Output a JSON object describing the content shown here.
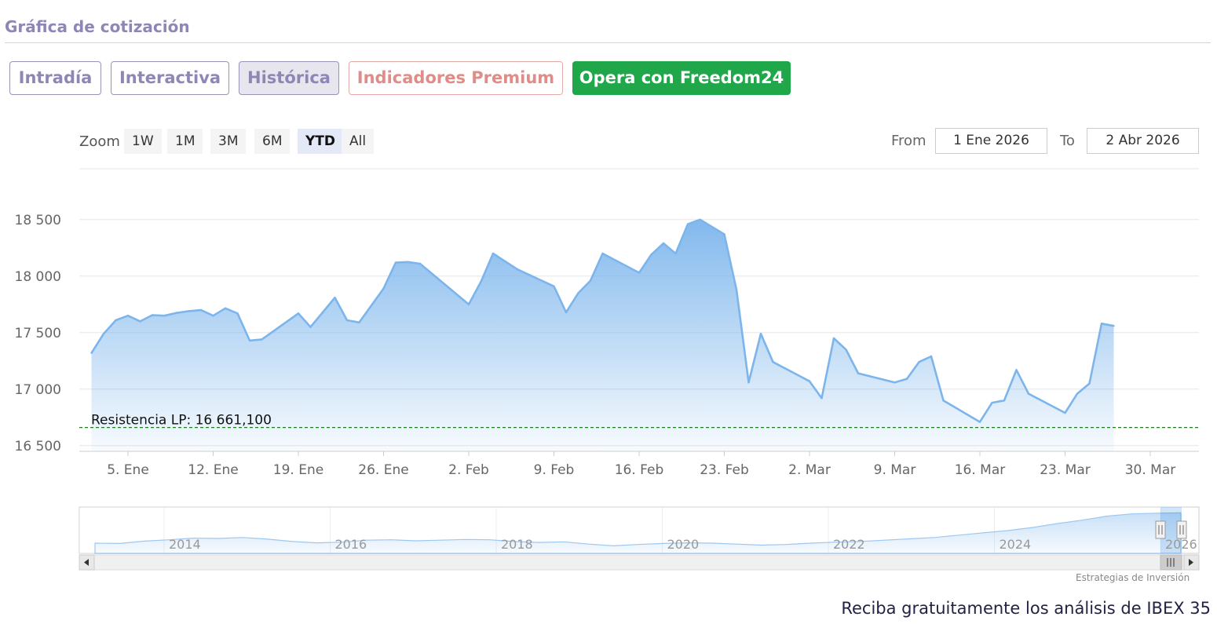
{
  "section_title": "Gráfica de cotización",
  "tabs": [
    {
      "label": "Intradía"
    },
    {
      "label": "Interactiva"
    },
    {
      "label": "Histórica"
    },
    {
      "label": "Indicadores Premium"
    },
    {
      "label": "Opera con Freedom24"
    }
  ],
  "zoom": {
    "label": "Zoom",
    "buttons": [
      "1W",
      "1M",
      "3M",
      "6M",
      "YTD",
      "All"
    ],
    "active": "YTD"
  },
  "range": {
    "from_label": "From",
    "from_value": "1 Ene 2026",
    "to_label": "To",
    "to_value": "2 Abr 2026"
  },
  "colors": {
    "line": "#7cb5ec",
    "resistance": "#1a7f1a",
    "freedom_button": "#1fa74a",
    "premium_text": "#e08c88",
    "tab_text": "#8f86b5"
  },
  "chart_data": {
    "type": "area",
    "title": "",
    "xlabel": "",
    "ylabel": "",
    "ylim": [
      16450,
      18950
    ],
    "yticks": [
      16500,
      17000,
      17500,
      18000,
      18500
    ],
    "ytick_labels": [
      "16 500",
      "17 000",
      "17 500",
      "18 000",
      "18 500"
    ],
    "xlim": [
      "2026-01-01",
      "2026-04-03"
    ],
    "xticks": [
      "2026-01-05",
      "2026-01-12",
      "2026-01-19",
      "2026-01-26",
      "2026-02-02",
      "2026-02-09",
      "2026-02-16",
      "2026-02-23",
      "2026-03-02",
      "2026-03-09",
      "2026-03-16",
      "2026-03-23",
      "2026-03-30"
    ],
    "xtick_labels": [
      "5. Ene",
      "12. Ene",
      "19. Ene",
      "26. Ene",
      "2. Feb",
      "9. Feb",
      "16. Feb",
      "23. Feb",
      "2. Mar",
      "9. Mar",
      "16. Mar",
      "23. Mar",
      "30. Mar"
    ],
    "grid": true,
    "series": [
      {
        "points": [
          [
            "2026-01-02",
            17320
          ],
          [
            "2026-01-03",
            17490
          ],
          [
            "2026-01-04",
            17610
          ],
          [
            "2026-01-05",
            17650
          ],
          [
            "2026-01-06",
            17600
          ],
          [
            "2026-01-07",
            17655
          ],
          [
            "2026-01-08",
            17650
          ],
          [
            "2026-01-09",
            17675
          ],
          [
            "2026-01-10",
            17690
          ],
          [
            "2026-01-11",
            17700
          ],
          [
            "2026-01-12",
            17650
          ],
          [
            "2026-01-13",
            17715
          ],
          [
            "2026-01-14",
            17670
          ],
          [
            "2026-01-15",
            17430
          ],
          [
            "2026-01-16",
            17440
          ],
          [
            "2026-01-19",
            17670
          ],
          [
            "2026-01-20",
            17550
          ],
          [
            "2026-01-21",
            17680
          ],
          [
            "2026-01-22",
            17810
          ],
          [
            "2026-01-23",
            17610
          ],
          [
            "2026-01-24",
            17590
          ],
          [
            "2026-01-26",
            17890
          ],
          [
            "2026-01-27",
            18120
          ],
          [
            "2026-01-28",
            18125
          ],
          [
            "2026-01-29",
            18110
          ],
          [
            "2026-02-02",
            17750
          ],
          [
            "2026-02-03",
            17950
          ],
          [
            "2026-02-04",
            18200
          ],
          [
            "2026-02-05",
            18130
          ],
          [
            "2026-02-06",
            18060
          ],
          [
            "2026-02-09",
            17910
          ],
          [
            "2026-02-10",
            17680
          ],
          [
            "2026-02-11",
            17850
          ],
          [
            "2026-02-12",
            17960
          ],
          [
            "2026-02-13",
            18200
          ],
          [
            "2026-02-16",
            18030
          ],
          [
            "2026-02-17",
            18190
          ],
          [
            "2026-02-18",
            18290
          ],
          [
            "2026-02-19",
            18200
          ],
          [
            "2026-02-20",
            18460
          ],
          [
            "2026-02-21",
            18500
          ],
          [
            "2026-02-23",
            18370
          ],
          [
            "2026-02-24",
            17880
          ],
          [
            "2026-02-25",
            17060
          ],
          [
            "2026-02-26",
            17490
          ],
          [
            "2026-02-27",
            17240
          ],
          [
            "2026-03-02",
            17070
          ],
          [
            "2026-03-03",
            16920
          ],
          [
            "2026-03-04",
            17450
          ],
          [
            "2026-03-05",
            17350
          ],
          [
            "2026-03-06",
            17140
          ],
          [
            "2026-03-09",
            17060
          ],
          [
            "2026-03-10",
            17090
          ],
          [
            "2026-03-11",
            17240
          ],
          [
            "2026-03-12",
            17290
          ],
          [
            "2026-03-13",
            16900
          ],
          [
            "2026-03-16",
            16710
          ],
          [
            "2026-03-17",
            16880
          ],
          [
            "2026-03-18",
            16900
          ],
          [
            "2026-03-19",
            17170
          ],
          [
            "2026-03-20",
            16960
          ],
          [
            "2026-03-23",
            16790
          ],
          [
            "2026-03-24",
            16960
          ],
          [
            "2026-03-25",
            17050
          ],
          [
            "2026-03-26",
            17580
          ],
          [
            "2026-03-27",
            17560
          ]
        ]
      }
    ],
    "annotations": [
      {
        "type": "horizontal_line",
        "y": 16661.1,
        "label": "Resistencia LP: 16 661,100",
        "style": "dashed"
      }
    ]
  },
  "navigator": {
    "year_labels": [
      "2014",
      "2016",
      "2018",
      "2020",
      "2022",
      "2024",
      "2026"
    ]
  },
  "credit": "Estrategias de Inversión",
  "promo_text": "Reciba gratuitamente los análisis de IBEX 35"
}
